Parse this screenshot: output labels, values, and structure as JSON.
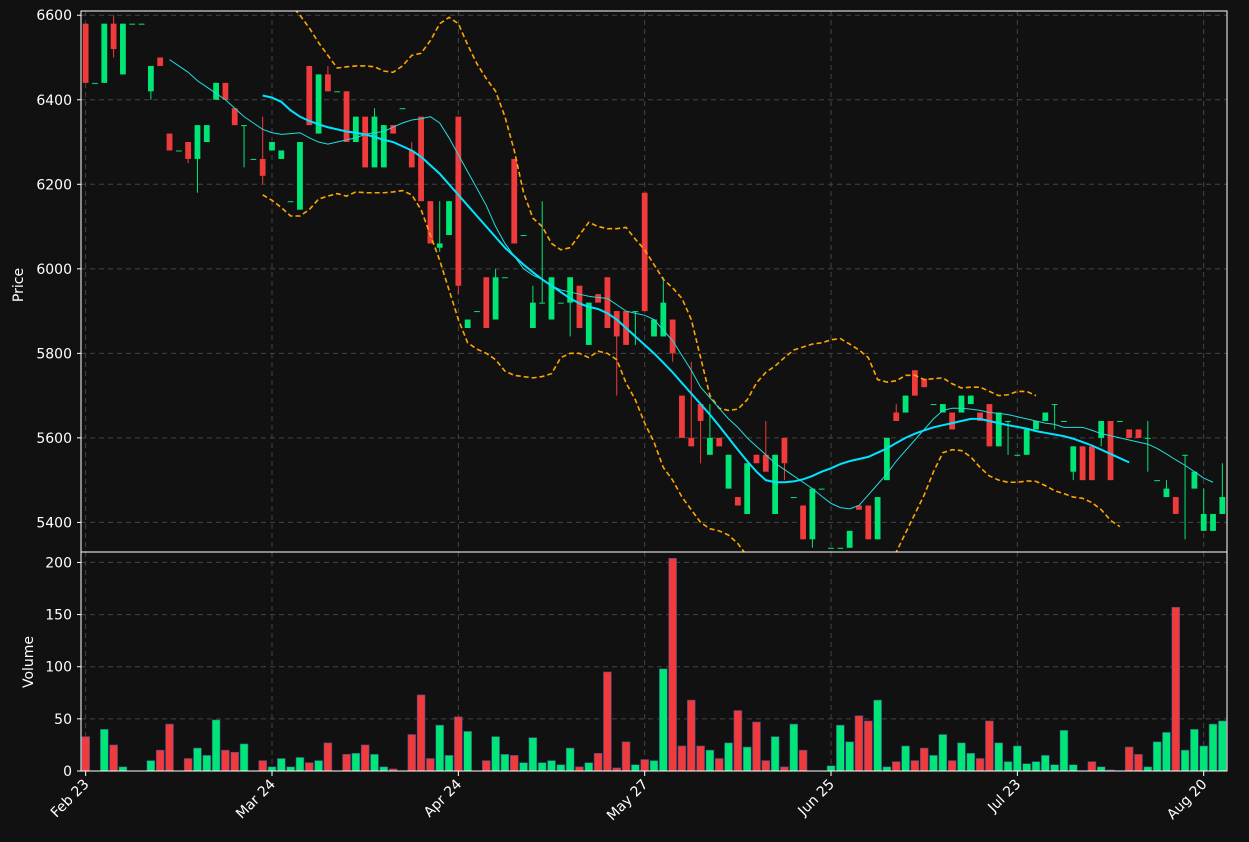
{
  "chart_data": {
    "type": "candlestick",
    "style": {
      "background": "#111111",
      "up_color": "#00e676",
      "down_color": "#ef3b3b",
      "grid_color": "#444444",
      "axis_color": "#ffffff",
      "ma_fast_color": "#22dddd",
      "ma_slow_color": "#00e5ff",
      "band_color": "#ffa500"
    },
    "price_panel": {
      "ylabel": "Price",
      "ylim": [
        5330,
        6610
      ],
      "yticks": [
        5400,
        5600,
        5800,
        6000,
        6200,
        6400,
        6600
      ],
      "grid": true
    },
    "volume_panel": {
      "ylabel": "Volume",
      "ylim": [
        0,
        210
      ],
      "yticks": [
        0,
        50,
        100,
        150,
        200
      ],
      "grid": true
    },
    "xlabels": [
      {
        "index": 0,
        "label": "Feb 23"
      },
      {
        "index": 20,
        "label": "Mar 24"
      },
      {
        "index": 40,
        "label": "Apr 24"
      },
      {
        "index": 60,
        "label": "May 27"
      },
      {
        "index": 80,
        "label": "Jun 25"
      },
      {
        "index": 100,
        "label": "Jul 23"
      },
      {
        "index": 120,
        "label": "Aug 20"
      }
    ],
    "candles": [
      [
        6580,
        6580,
        6440,
        6440
      ],
      [
        6440,
        6440,
        6440,
        6440
      ],
      [
        6440,
        6580,
        6440,
        6580
      ],
      [
        6580,
        6600,
        6500,
        6520
      ],
      [
        6460,
        6580,
        6460,
        6580
      ],
      [
        6580,
        6580,
        6580,
        6580
      ],
      [
        6580,
        6580,
        6580,
        6580
      ],
      [
        6420,
        6480,
        6400,
        6480
      ],
      [
        6500,
        6500,
        6480,
        6480
      ],
      [
        6320,
        6320,
        6280,
        6280
      ],
      [
        6280,
        6280,
        6280,
        6280
      ],
      [
        6300,
        6300,
        6250,
        6260
      ],
      [
        6260,
        6340,
        6180,
        6340
      ],
      [
        6300,
        6340,
        6300,
        6340
      ],
      [
        6400,
        6440,
        6400,
        6440
      ],
      [
        6440,
        6440,
        6400,
        6400
      ],
      [
        6380,
        6380,
        6340,
        6340
      ],
      [
        6340,
        6340,
        6240,
        6340
      ],
      [
        6260,
        6260,
        6260,
        6260
      ],
      [
        6260,
        6360,
        6200,
        6220
      ],
      [
        6280,
        6300,
        6280,
        6300
      ],
      [
        6260,
        6280,
        6260,
        6280
      ],
      [
        6160,
        6160,
        6160,
        6160
      ],
      [
        6140,
        6300,
        6140,
        6300
      ],
      [
        6480,
        6480,
        6340,
        6340
      ],
      [
        6320,
        6460,
        6320,
        6460
      ],
      [
        6460,
        6480,
        6420,
        6420
      ],
      [
        6420,
        6420,
        6420,
        6420
      ],
      [
        6420,
        6420,
        6300,
        6300
      ],
      [
        6300,
        6360,
        6300,
        6360
      ],
      [
        6360,
        6360,
        6240,
        6240
      ],
      [
        6240,
        6380,
        6240,
        6360
      ],
      [
        6240,
        6340,
        6240,
        6340
      ],
      [
        6340,
        6340,
        6320,
        6320
      ],
      [
        6380,
        6380,
        6380,
        6380
      ],
      [
        6280,
        6300,
        6240,
        6240
      ],
      [
        6360,
        6360,
        6160,
        6160
      ],
      [
        6160,
        6160,
        6060,
        6060
      ],
      [
        6050,
        6160,
        6040,
        6060
      ],
      [
        6080,
        6160,
        6080,
        6160
      ],
      [
        6360,
        6360,
        5940,
        5960
      ],
      [
        5860,
        5880,
        5860,
        5880
      ],
      [
        5900,
        5900,
        5900,
        5900
      ],
      [
        5980,
        5980,
        5860,
        5860
      ],
      [
        5880,
        6000,
        5880,
        5980
      ],
      [
        5980,
        5980,
        5980,
        5980
      ],
      [
        6260,
        6260,
        6060,
        6060
      ],
      [
        6080,
        6080,
        6080,
        6080
      ],
      [
        5860,
        5960,
        5860,
        5920
      ],
      [
        5920,
        6160,
        5920,
        5920
      ],
      [
        5880,
        5980,
        5880,
        5980
      ],
      [
        5920,
        5920,
        5920,
        5920
      ],
      [
        5920,
        5980,
        5840,
        5980
      ],
      [
        5960,
        5960,
        5860,
        5860
      ],
      [
        5820,
        5920,
        5820,
        5920
      ],
      [
        5940,
        5940,
        5920,
        5920
      ],
      [
        5980,
        5980,
        5860,
        5860
      ],
      [
        5900,
        5900,
        5700,
        5840
      ],
      [
        5900,
        5900,
        5820,
        5820
      ],
      [
        5900,
        5900,
        5820,
        5900
      ],
      [
        6180,
        6180,
        5900,
        5900
      ],
      [
        5840,
        5880,
        5840,
        5880
      ],
      [
        5840,
        5980,
        5840,
        5920
      ],
      [
        5880,
        5880,
        5780,
        5800
      ],
      [
        5700,
        5700,
        5600,
        5600
      ],
      [
        5600,
        5780,
        5580,
        5580
      ],
      [
        5680,
        5680,
        5540,
        5640
      ],
      [
        5560,
        5680,
        5560,
        5600
      ],
      [
        5600,
        5600,
        5580,
        5580
      ],
      [
        5480,
        5560,
        5480,
        5560
      ],
      [
        5460,
        5460,
        5440,
        5440
      ],
      [
        5420,
        5540,
        5420,
        5540
      ],
      [
        5560,
        5560,
        5540,
        5540
      ],
      [
        5560,
        5640,
        5520,
        5520
      ],
      [
        5420,
        5560,
        5420,
        5560
      ],
      [
        5600,
        5600,
        5500,
        5540
      ],
      [
        5460,
        5460,
        5460,
        5460
      ],
      [
        5440,
        5440,
        5360,
        5360
      ],
      [
        5360,
        5480,
        5340,
        5480
      ],
      [
        5480,
        5480,
        5480,
        5480
      ],
      [
        5340,
        5340,
        5340,
        5340
      ],
      [
        5340,
        5340,
        5340,
        5340
      ],
      [
        5340,
        5380,
        5340,
        5380
      ],
      [
        5440,
        5440,
        5430,
        5430
      ],
      [
        5440,
        5440,
        5360,
        5360
      ],
      [
        5360,
        5460,
        5360,
        5460
      ],
      [
        5500,
        5600,
        5500,
        5600
      ],
      [
        5660,
        5680,
        5640,
        5640
      ],
      [
        5660,
        5700,
        5660,
        5700
      ],
      [
        5760,
        5760,
        5700,
        5700
      ],
      [
        5740,
        5740,
        5720,
        5720
      ],
      [
        5680,
        5680,
        5680,
        5680
      ],
      [
        5660,
        5680,
        5660,
        5680
      ],
      [
        5660,
        5660,
        5620,
        5620
      ],
      [
        5660,
        5700,
        5660,
        5700
      ],
      [
        5680,
        5700,
        5680,
        5700
      ],
      [
        5660,
        5660,
        5640,
        5640
      ],
      [
        5680,
        5680,
        5580,
        5580
      ],
      [
        5580,
        5660,
        5580,
        5660
      ],
      [
        5640,
        5640,
        5560,
        5640
      ],
      [
        5560,
        5560,
        5560,
        5560
      ],
      [
        5560,
        5620,
        5560,
        5620
      ],
      [
        5620,
        5640,
        5620,
        5640
      ],
      [
        5640,
        5660,
        5640,
        5660
      ],
      [
        5680,
        5680,
        5620,
        5680
      ],
      [
        5640,
        5640,
        5640,
        5640
      ],
      [
        5520,
        5580,
        5500,
        5580
      ],
      [
        5580,
        5580,
        5500,
        5500
      ],
      [
        5580,
        5580,
        5500,
        5500
      ],
      [
        5600,
        5640,
        5580,
        5640
      ],
      [
        5640,
        5640,
        5500,
        5500
      ],
      [
        5640,
        5640,
        5640,
        5640
      ],
      [
        5620,
        5620,
        5600,
        5600
      ],
      [
        5620,
        5620,
        5600,
        5600
      ],
      [
        5600,
        5640,
        5520,
        5600
      ],
      [
        5500,
        5500,
        5500,
        5500
      ],
      [
        5460,
        5500,
        5460,
        5480
      ],
      [
        5460,
        5460,
        5420,
        5420
      ],
      [
        5560,
        5560,
        5360,
        5560
      ],
      [
        5480,
        5520,
        5480,
        5520
      ],
      [
        5380,
        5480,
        5380,
        5420
      ],
      [
        5380,
        5420,
        5380,
        5420
      ],
      [
        5420,
        5540,
        5420,
        5460
      ]
    ],
    "volume": [
      33,
      0,
      40,
      25,
      4,
      0,
      0,
      10,
      20,
      45,
      0,
      12,
      22,
      15,
      49,
      20,
      18,
      26,
      0,
      10,
      4,
      12,
      4,
      13,
      8,
      10,
      27,
      0,
      16,
      17,
      25,
      16,
      4,
      2,
      0,
      35,
      73,
      12,
      44,
      15,
      52,
      38,
      0,
      10,
      33,
      16,
      15,
      8,
      32,
      8,
      10,
      6,
      22,
      4,
      8,
      17,
      95,
      3,
      28,
      6,
      11,
      10,
      98,
      204,
      24,
      68,
      24,
      20,
      12,
      27,
      58,
      23,
      47,
      10,
      33,
      4,
      45,
      20,
      0,
      0,
      5,
      44,
      28,
      53,
      48,
      68,
      4,
      9,
      24,
      10,
      22,
      15,
      35,
      10,
      27,
      17,
      12,
      48,
      27,
      9,
      24,
      7,
      9,
      15,
      6,
      39,
      6,
      0,
      9,
      4,
      1,
      0,
      23,
      16,
      4,
      28,
      37,
      157,
      20,
      40,
      24,
      45,
      48
    ],
    "ma_fast_start": 9,
    "ma_fast": [
      6495,
      6480,
      6465,
      6445,
      6430,
      6415,
      6400,
      6380,
      6360,
      6345,
      6330,
      6322,
      6318,
      6320,
      6322,
      6310,
      6300,
      6295,
      6300,
      6305,
      6310,
      6318,
      6322,
      6325,
      6335,
      6345,
      6352,
      6355,
      6360,
      6345,
      6310,
      6270,
      6230,
      6190,
      6150,
      6100,
      6060,
      6030,
      6000,
      5985,
      5975,
      5960,
      5950,
      5945,
      5940,
      5935,
      5932,
      5930,
      5915,
      5900,
      5895,
      5890,
      5880,
      5855,
      5830,
      5795,
      5760,
      5720,
      5695,
      5670,
      5645,
      5625,
      5600,
      5580,
      5560,
      5540,
      5525,
      5510,
      5495,
      5480,
      5462,
      5445,
      5435,
      5432,
      5440,
      5465,
      5490,
      5515,
      5545,
      5570,
      5595,
      5620,
      5645,
      5665,
      5670,
      5670,
      5668,
      5665,
      5660,
      5658,
      5655,
      5650,
      5645,
      5640,
      5635,
      5632,
      5625,
      5625,
      5625,
      5618,
      5610,
      5605,
      5600,
      5595,
      5590,
      5585,
      5575,
      5562,
      5548,
      5535,
      5520,
      5505,
      5495
    ],
    "ma_slow_start": 19,
    "ma_slow": [
      6410,
      6405,
      6395,
      6375,
      6360,
      6350,
      6342,
      6335,
      6330,
      6325,
      6322,
      6318,
      6312,
      6305,
      6300,
      6290,
      6280,
      6265,
      6245,
      6225,
      6200,
      6175,
      6150,
      6125,
      6100,
      6075,
      6050,
      6030,
      6010,
      5992,
      5975,
      5960,
      5945,
      5930,
      5918,
      5910,
      5905,
      5895,
      5880,
      5860,
      5840,
      5820,
      5800,
      5778,
      5755,
      5730,
      5705,
      5680,
      5655,
      5628,
      5600,
      5572,
      5545,
      5520,
      5500,
      5495,
      5495,
      5497,
      5502,
      5510,
      5520,
      5528,
      5538,
      5545,
      5550,
      5555,
      5565,
      5575,
      5588,
      5600,
      5610,
      5618,
      5625,
      5630,
      5635,
      5640,
      5645,
      5645,
      5640,
      5635,
      5630,
      5626,
      5622,
      5616,
      5612,
      5608,
      5604,
      5598,
      5590,
      5582,
      5572,
      5562,
      5552,
      5542
    ],
    "band_upper": [
      6670,
      6660,
      6640,
      6625,
      6600,
      6570,
      6535,
      6505,
      6475,
      6478,
      6480,
      6480,
      6478,
      6468,
      6465,
      6480,
      6505,
      6510,
      6540,
      6580,
      6595,
      6580,
      6530,
      6485,
      6450,
      6420,
      6360,
      6280,
      6180,
      6120,
      6100,
      6060,
      6045,
      6050,
      6080,
      6110,
      6100,
      6095,
      6095,
      6098,
      6070,
      6045,
      6010,
      5975,
      5955,
      5930,
      5880,
      5790,
      5700,
      5670,
      5665,
      5668,
      5690,
      5730,
      5755,
      5770,
      5790,
      5808,
      5815,
      5822,
      5825,
      5832,
      5835,
      5822,
      5808,
      5790,
      5738,
      5732,
      5735,
      5748,
      5748,
      5738,
      5740,
      5742,
      5728,
      5718,
      5720,
      5720,
      5710,
      5700,
      5702,
      5710,
      5710,
      5700
    ],
    "band_lower": [
      6175,
      6162,
      6145,
      6125,
      6125,
      6140,
      6165,
      6172,
      6178,
      6172,
      6182,
      6180,
      6180,
      6180,
      6182,
      6185,
      6175,
      6140,
      6080,
      6020,
      5950,
      5880,
      5825,
      5810,
      5800,
      5785,
      5758,
      5748,
      5745,
      5742,
      5745,
      5752,
      5790,
      5800,
      5800,
      5790,
      5805,
      5800,
      5785,
      5730,
      5690,
      5635,
      5590,
      5530,
      5500,
      5460,
      5430,
      5400,
      5385,
      5380,
      5370,
      5350,
      5320,
      5280,
      5250,
      5225,
      5200,
      5175,
      5150,
      5150,
      5180,
      5200,
      5230,
      5255,
      5280,
      5290,
      5320,
      5320,
      5330,
      5375,
      5420,
      5465,
      5520,
      5565,
      5572,
      5570,
      5555,
      5530,
      5510,
      5500,
      5495,
      5495,
      5498,
      5497,
      5487,
      5475,
      5468,
      5460,
      5457,
      5447,
      5430,
      5405,
      5390
    ],
    "band_start": 19
  }
}
